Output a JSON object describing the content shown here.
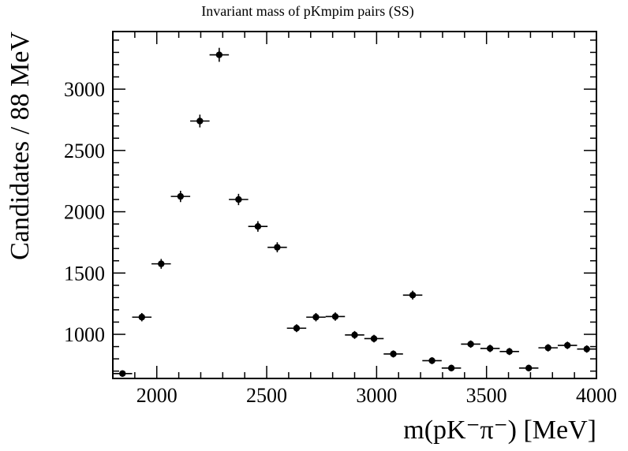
{
  "chart_data": {
    "type": "scatter",
    "title": "Invariant mass of pKmpim pairs (SS)",
    "xlabel": "m(pK⁻π⁻) [MeV]",
    "ylabel": "Candidates / 88 MeV",
    "xlim": [
      1800,
      4000
    ],
    "ylim": [
      640,
      3470
    ],
    "x_ticks": [
      2000,
      2500,
      3000,
      3500,
      4000
    ],
    "y_ticks": [
      1000,
      1500,
      2000,
      2500,
      3000
    ],
    "bin_width": 88,
    "grid": false,
    "legend": "none",
    "series": [
      {
        "x": [
          1844,
          1932,
          2020,
          2108,
          2196,
          2284,
          2372,
          2460,
          2548,
          2636,
          2724,
          2812,
          2900,
          2988,
          3076,
          3164,
          3252,
          3340,
          3428,
          3516,
          3604,
          3692,
          3780,
          3868,
          3956
        ],
        "y": [
          680,
          1140,
          1575,
          2125,
          2740,
          3280,
          2100,
          1880,
          1710,
          1050,
          1140,
          1145,
          995,
          965,
          840,
          1320,
          785,
          725,
          920,
          885,
          860,
          725,
          890,
          910,
          880
        ],
        "yerr": [
          26,
          34,
          40,
          46,
          52,
          57,
          46,
          43,
          41,
          32,
          34,
          34,
          32,
          31,
          29,
          36,
          28,
          27,
          30,
          30,
          29,
          27,
          30,
          30,
          30
        ]
      }
    ]
  }
}
